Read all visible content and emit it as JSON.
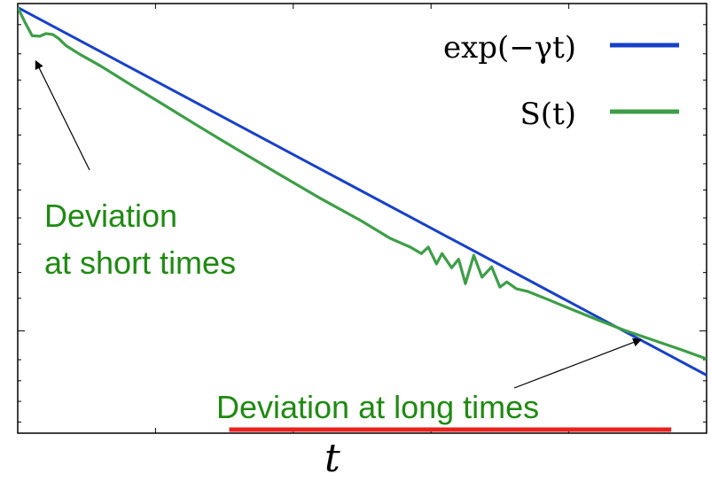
{
  "chart_data": {
    "type": "line",
    "xlabel": "t",
    "ylabel": "",
    "title": "",
    "xlim": [
      0,
      5
    ],
    "ylim": [
      0,
      1
    ],
    "log_y": true,
    "grid": false,
    "legend": {
      "placement": "top-right"
    },
    "xticks": [
      0,
      1,
      2,
      3,
      4,
      5
    ],
    "yticks_major": [
      0.238
    ],
    "yticks_minor": [
      0.026,
      0.074,
      0.122,
      0.171,
      0.314,
      0.374,
      0.44,
      0.501,
      0.566,
      0.627,
      0.694,
      0.755,
      0.822,
      0.883,
      0.951
    ],
    "series": [
      {
        "name": "exp(−γt)",
        "legend_label": "exp(−γt)",
        "color": "#1740c9",
        "x": [
          0,
          5
        ],
        "y": [
          0.991,
          0.135
        ]
      },
      {
        "name": "S(t)",
        "legend_label": "S(t)",
        "color": "#3d9e47",
        "x": [
          0,
          0.055,
          0.105,
          0.16,
          0.205,
          0.255,
          0.3,
          0.35,
          0.45,
          0.6,
          0.8,
          1.0,
          1.3,
          1.6,
          1.9,
          2.2,
          2.5,
          2.7,
          2.85,
          2.93,
          2.98,
          3.04,
          3.08,
          3.15,
          3.2,
          3.25,
          3.31,
          3.37,
          3.44,
          3.5,
          3.55,
          3.62,
          3.7,
          3.85,
          4.0,
          4.2,
          4.4,
          4.6,
          4.8,
          5.0
        ],
        "y": [
          0.991,
          0.955,
          0.925,
          0.924,
          0.93,
          0.928,
          0.918,
          0.902,
          0.882,
          0.855,
          0.815,
          0.776,
          0.717,
          0.659,
          0.602,
          0.546,
          0.493,
          0.454,
          0.433,
          0.418,
          0.433,
          0.394,
          0.418,
          0.385,
          0.405,
          0.348,
          0.414,
          0.363,
          0.387,
          0.34,
          0.352,
          0.336,
          0.33,
          0.311,
          0.291,
          0.265,
          0.24,
          0.218,
          0.196,
          0.173
        ]
      }
    ],
    "annotations": [
      {
        "text_lines": [
          "Deviation",
          "at short times"
        ],
        "color": "#1f8a12",
        "target": {
          "x": 0.32,
          "y": 0.879
        }
      },
      {
        "text": "Deviation at long times",
        "color": "#1f8a12",
        "target": {
          "x": 4.3,
          "y": 0.24
        }
      }
    ],
    "highlight_range": {
      "label": "Deviation at long times",
      "x_start": 1.4,
      "x_end": 4.75,
      "color": "#e8221f"
    }
  }
}
